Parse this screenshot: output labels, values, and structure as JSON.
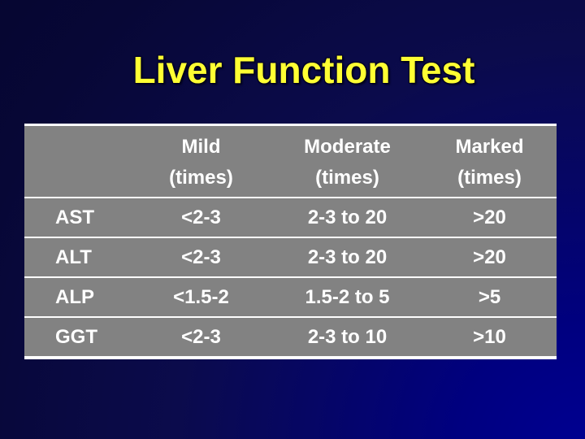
{
  "slide_title": "Liver Function Test",
  "colors": {
    "title_text": "#ffff33",
    "background_dark": "#05052c",
    "background_bright": "#000080",
    "table_background": "#828282",
    "table_text": "#ffffff",
    "grid_lines": "#ffffff"
  },
  "table": {
    "header": [
      {
        "line1": "",
        "line2": ""
      },
      {
        "line1": "Mild",
        "line2": "(times)"
      },
      {
        "line1": "Moderate",
        "line2": "(times)"
      },
      {
        "line1": "Marked",
        "line2": "(times)"
      }
    ],
    "rows": [
      {
        "label": "AST",
        "mild": "<2-3",
        "moderate": "2-3 to 20",
        "marked": ">20"
      },
      {
        "label": "ALT",
        "mild": "<2-3",
        "moderate": "2-3 to 20",
        "marked": ">20"
      },
      {
        "label": "ALP",
        "mild": "<1.5-2",
        "moderate": "1.5-2 to 5",
        "marked": ">5"
      },
      {
        "label": "GGT",
        "mild": "<2-3",
        "moderate": "2-3 to 10",
        "marked": ">10"
      }
    ]
  }
}
